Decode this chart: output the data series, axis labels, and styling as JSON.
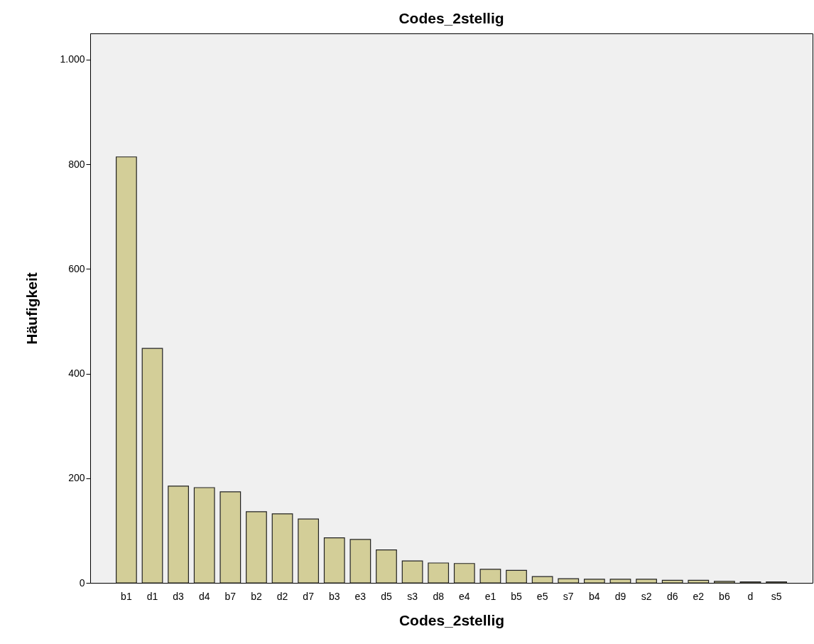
{
  "chart_data": {
    "type": "bar",
    "title": "Codes_2stellig",
    "xlabel": "Codes_2stellig",
    "ylabel": "Häufigkeit",
    "categories": [
      "b1",
      "d1",
      "d3",
      "d4",
      "b7",
      "b2",
      "d2",
      "d7",
      "b3",
      "e3",
      "d5",
      "s3",
      "d8",
      "e4",
      "e1",
      "b5",
      "e5",
      "s7",
      "b4",
      "d9",
      "s2",
      "d6",
      "e2",
      "b6",
      "d",
      "s5"
    ],
    "values": [
      814,
      448,
      185,
      182,
      174,
      136,
      132,
      122,
      86,
      83,
      63,
      42,
      38,
      37,
      26,
      24,
      12,
      8,
      7,
      7,
      7,
      5,
      5,
      3,
      2,
      2
    ],
    "color": "#d3ce98",
    "ylim": [
      0,
      1050
    ],
    "yticks": [
      0,
      200,
      400,
      600,
      800,
      {
        "value": 1000,
        "label": "1.000"
      }
    ],
    "grid": false
  }
}
